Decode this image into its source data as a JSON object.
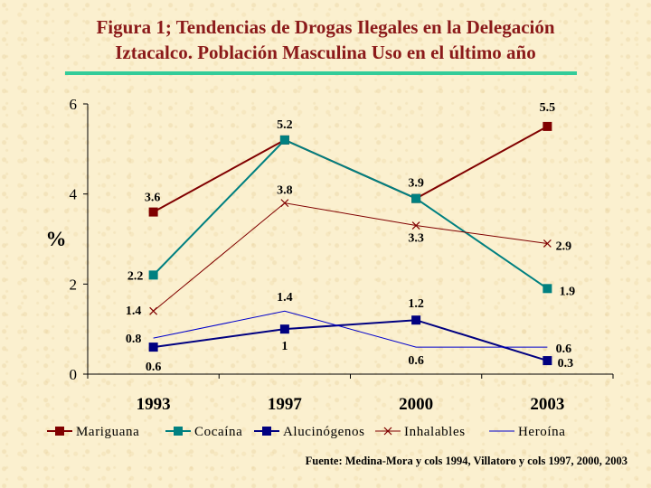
{
  "title": {
    "line1": "Figura 1; Tendencias de Drogas Ilegales en  la Delegación",
    "line2": "Iztacalco. Población Masculina Uso en el último año"
  },
  "source": "Fuente: Medina-Mora y cols 1994, Villatoro y cols 1997, 2000, 2003",
  "chart_data": {
    "type": "line",
    "categories": [
      "1993",
      "1997",
      "2000",
      "2003"
    ],
    "ylabel": "%",
    "ylim": [
      0,
      6
    ],
    "yticks": [
      "0",
      "2",
      "4",
      "6"
    ],
    "legend_placement": "bottom",
    "series": [
      {
        "name": "Mariguana",
        "values": [
          3.6,
          5.2,
          3.9,
          5.5
        ],
        "labels": [
          "3.6",
          "5.2",
          "3.9",
          "5.5"
        ],
        "color": "#800000",
        "marker": "square",
        "width": 2
      },
      {
        "name": "Cocaína",
        "values": [
          2.2,
          5.2,
          3.9,
          1.9
        ],
        "labels": [
          "2.2",
          "",
          "",
          "1.9"
        ],
        "color": "#008080",
        "marker": "square",
        "width": 2
      },
      {
        "name": "Alucinógenos",
        "values": [
          0.6,
          1.0,
          1.2,
          0.3
        ],
        "labels": [
          "0.6",
          "1",
          "1.2",
          "0.3"
        ],
        "color": "#000080",
        "marker": "square",
        "width": 2
      },
      {
        "name": "Inhalables",
        "values": [
          1.4,
          3.8,
          3.3,
          2.9
        ],
        "labels": [
          "1.4",
          "3.8",
          "3.3",
          "2.9"
        ],
        "color": "#800000",
        "marker": "x",
        "width": 1
      },
      {
        "name": "Heroína",
        "values": [
          0.8,
          1.4,
          0.6,
          0.6
        ],
        "labels": [
          "0.8",
          "1.4",
          "0.6",
          "0.6"
        ],
        "color": "#0000cc",
        "marker": "none",
        "width": 1
      }
    ]
  }
}
